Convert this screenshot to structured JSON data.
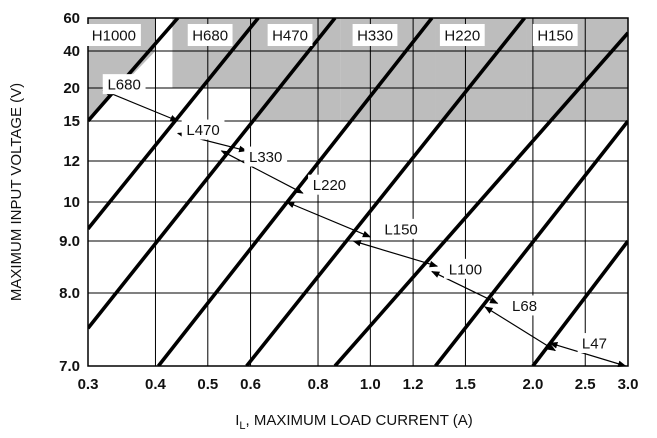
{
  "chart_data": {
    "type": "line",
    "title": "",
    "xlabel_main": "I",
    "xlabel_sub": "L",
    "xlabel_rest": ", MAXIMUM LOAD CURRENT (A)",
    "ylabel": "MAXIMUM INPUT VOLTAGE (V)",
    "xscale": "log",
    "xlim": [
      0.3,
      3.0
    ],
    "grid": true,
    "x_ticks": [
      {
        "value": 0.3,
        "label": "0.3"
      },
      {
        "value": 0.4,
        "label": "0.4"
      },
      {
        "value": 0.5,
        "label": "0.5"
      },
      {
        "value": 0.6,
        "label": "0.6"
      },
      {
        "value": 0.8,
        "label": "0.8"
      },
      {
        "value": 1.0,
        "label": "1.0"
      },
      {
        "value": 1.2,
        "label": "1.2"
      },
      {
        "value": 1.5,
        "label": "1.5"
      },
      {
        "value": 2.0,
        "label": "2.0"
      },
      {
        "value": 2.5,
        "label": "2.5"
      },
      {
        "value": 3.0,
        "label": "3.0"
      }
    ],
    "y_ticks": [
      {
        "value": 7.0,
        "label": "7.0"
      },
      {
        "value": 8.0,
        "label": "8.0"
      },
      {
        "value": 9.0,
        "label": "9.0"
      },
      {
        "value": 10,
        "label": "10"
      },
      {
        "value": 12,
        "label": "12"
      },
      {
        "value": 15,
        "label": "15"
      },
      {
        "value": 20,
        "label": "20"
      },
      {
        "value": 40,
        "label": "40"
      },
      {
        "value": 60,
        "label": "60"
      }
    ],
    "boundary_lines": [
      {
        "points": [
          [
            0.3,
            15
          ],
          [
            0.44,
            60
          ]
        ]
      },
      {
        "points": [
          [
            0.3,
            9.3
          ],
          [
            0.62,
            60
          ]
        ]
      },
      {
        "points": [
          [
            0.3,
            7.5
          ],
          [
            0.86,
            60
          ]
        ]
      },
      {
        "points": [
          [
            0.405,
            7.0
          ],
          [
            1.3,
            60
          ]
        ]
      },
      {
        "points": [
          [
            0.59,
            7.0
          ],
          [
            1.93,
            60
          ]
        ]
      },
      {
        "points": [
          [
            0.86,
            7.0
          ],
          [
            3.0,
            50
          ]
        ]
      },
      {
        "points": [
          [
            1.32,
            7.0
          ],
          [
            3.0,
            15
          ]
        ]
      },
      {
        "points": [
          [
            2.0,
            7.0
          ],
          [
            3.0,
            9.0
          ]
        ]
      }
    ],
    "high_regions": [
      {
        "label": "H1000",
        "x_range": [
          0.3,
          0.4
        ],
        "x_label": 0.335,
        "lower_edge": [
          [
            0.3,
            15
          ],
          [
            0.4,
            40
          ]
        ]
      },
      {
        "label": "H680",
        "x_range": [
          0.43,
          0.6
        ],
        "x_label": 0.505,
        "lower_edge": [
          [
            0.43,
            20
          ],
          [
            0.6,
            20
          ]
        ]
      },
      {
        "label": "H470",
        "x_range": [
          0.6,
          0.88
        ],
        "x_label": 0.71,
        "lower_edge": [
          [
            0.6,
            15
          ],
          [
            0.88,
            15
          ]
        ]
      },
      {
        "label": "H330",
        "x_range": [
          0.88,
          1.32
        ],
        "x_label": 1.02,
        "lower_edge": [
          [
            0.88,
            15
          ],
          [
            1.32,
            15
          ]
        ]
      },
      {
        "label": "H220",
        "x_range": [
          1.32,
          1.95
        ],
        "x_label": 1.48,
        "lower_edge": [
          [
            1.32,
            15
          ],
          [
            1.95,
            15
          ]
        ]
      },
      {
        "label": "H150",
        "x_range": [
          1.95,
          3.0
        ],
        "x_label": 2.2,
        "lower_edge": [
          [
            1.95,
            15
          ],
          [
            3.0,
            15
          ]
        ]
      }
    ],
    "inductor_series": [
      {
        "label": "L680",
        "x_label": 0.35,
        "y_label": 21.5,
        "from": [
          0.32,
          19.6
        ],
        "to": [
          0.44,
          15.0
        ]
      },
      {
        "label": "L470",
        "x_label": 0.49,
        "y_label": 14.3,
        "from": [
          0.44,
          14.0
        ],
        "to": [
          0.59,
          12.7
        ]
      },
      {
        "label": "L330",
        "x_label": 0.64,
        "y_label": 12.3,
        "from": [
          0.53,
          12.7
        ],
        "to": [
          0.75,
          10.4
        ]
      },
      {
        "label": "L220",
        "x_label": 0.84,
        "y_label": 10.8,
        "from": [
          0.7,
          10.0
        ],
        "to": [
          1.0,
          9.1
        ]
      },
      {
        "label": "L150",
        "x_label": 1.14,
        "y_label": 9.3,
        "from": [
          0.93,
          9.0
        ],
        "to": [
          1.33,
          8.5
        ]
      },
      {
        "label": "L100",
        "x_label": 1.5,
        "y_label": 8.45,
        "from": [
          1.3,
          8.4
        ],
        "to": [
          1.72,
          7.85
        ]
      },
      {
        "label": "L68",
        "x_label": 1.93,
        "y_label": 7.82,
        "from": [
          1.63,
          7.8
        ],
        "to": [
          2.2,
          7.2
        ]
      },
      {
        "label": "L47",
        "x_label": 2.6,
        "y_label": 7.3,
        "from": [
          2.15,
          7.3
        ],
        "to": [
          2.97,
          7.0
        ]
      }
    ],
    "colors": {
      "shade": "#bdbdbd",
      "line": "#000000",
      "grid": "#000000",
      "background": "#ffffff"
    }
  }
}
